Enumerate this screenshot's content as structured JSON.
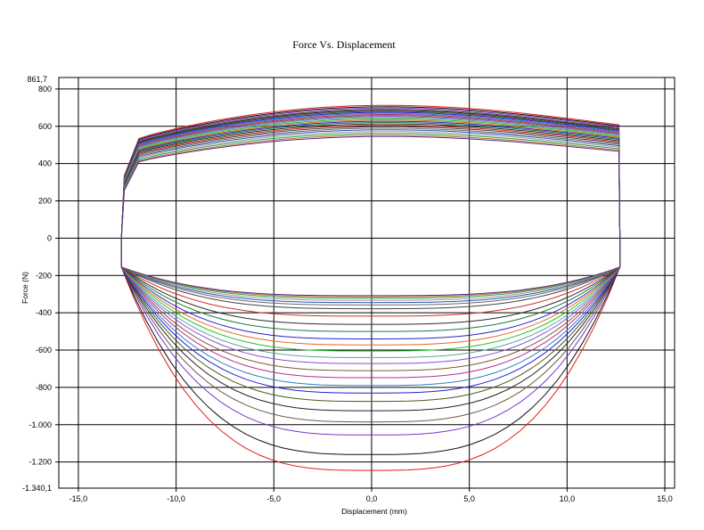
{
  "chart_data": {
    "type": "line",
    "title": "Force Vs. Displacement",
    "xlabel": "Displacement (mm)",
    "ylabel": "Force (N)",
    "xlim": [
      -16.0,
      15.5
    ],
    "ylim": [
      -1340.1,
      861.7
    ],
    "y_extreme_labels": {
      "max": "861,7",
      "min": "-1.340,1"
    },
    "x_ticks": [
      {
        "value": -15,
        "label": "-15,0"
      },
      {
        "value": -10,
        "label": "-10,0"
      },
      {
        "value": -5,
        "label": "-5,0"
      },
      {
        "value": 0,
        "label": "0,0"
      },
      {
        "value": 5,
        "label": "5,0"
      },
      {
        "value": 10,
        "label": "10,0"
      },
      {
        "value": 15,
        "label": "15,0"
      }
    ],
    "y_ticks": [
      {
        "value": 800,
        "label": "800"
      },
      {
        "value": 600,
        "label": "600"
      },
      {
        "value": 400,
        "label": "400"
      },
      {
        "value": 200,
        "label": "200"
      },
      {
        "value": 0,
        "label": "0"
      },
      {
        "value": -200,
        "label": "-200"
      },
      {
        "value": -400,
        "label": "-400"
      },
      {
        "value": -600,
        "label": "-600"
      },
      {
        "value": -800,
        "label": "-800"
      },
      {
        "value": -1000,
        "label": "-1.000"
      },
      {
        "value": -1200,
        "label": "-1.200"
      }
    ],
    "grid": true,
    "legend": "none",
    "displacement_range": [
      -12.8,
      12.7
    ],
    "series": [
      {
        "color": "#e0201b",
        "upper_peak": 760,
        "lower_min": -1245
      },
      {
        "color": "#111111",
        "upper_peak": 752,
        "lower_min": -1160
      },
      {
        "color": "#7a33cc",
        "upper_peak": 745,
        "lower_min": -1055
      },
      {
        "color": "#6b5a47",
        "upper_peak": 738,
        "lower_min": -985
      },
      {
        "color": "#222222",
        "upper_peak": 732,
        "lower_min": -925
      },
      {
        "color": "#4a5a1a",
        "upper_peak": 726,
        "lower_min": -875
      },
      {
        "color": "#1f1fd6",
        "upper_peak": 720,
        "lower_min": -830
      },
      {
        "color": "#2f7ec9",
        "upper_peak": 714,
        "lower_min": -790
      },
      {
        "color": "#b52f8a",
        "upper_peak": 708,
        "lower_min": -748
      },
      {
        "color": "#7e5a36",
        "upper_peak": 702,
        "lower_min": -710
      },
      {
        "color": "#8a4fd8",
        "upper_peak": 696,
        "lower_min": -672
      },
      {
        "color": "#5aa7a0",
        "upper_peak": 690,
        "lower_min": -640
      },
      {
        "color": "#22c22a",
        "upper_peak": 683,
        "lower_min": -605
      },
      {
        "color": "#e86a1c",
        "upper_peak": 676,
        "lower_min": -572
      },
      {
        "color": "#2222cc",
        "upper_peak": 669,
        "lower_min": -540
      },
      {
        "color": "#1c7a3a",
        "upper_peak": 662,
        "lower_min": -500
      },
      {
        "color": "#2c2c2c",
        "upper_peak": 654,
        "lower_min": -462
      },
      {
        "color": "#d42a2a",
        "upper_peak": 646,
        "lower_min": -418
      },
      {
        "color": "#444444",
        "upper_peak": 638,
        "lower_min": -378
      },
      {
        "color": "#6a6a6a",
        "upper_peak": 629,
        "lower_min": -358
      },
      {
        "color": "#3050b0",
        "upper_peak": 620,
        "lower_min": -345
      },
      {
        "color": "#9a9a9a",
        "upper_peak": 610,
        "lower_min": -333
      },
      {
        "color": "#26a04a",
        "upper_peak": 600,
        "lower_min": -322
      },
      {
        "color": "#b86a2a",
        "upper_peak": 590,
        "lower_min": -314
      },
      {
        "color": "#5a2a8a",
        "upper_peak": 582,
        "lower_min": -308
      }
    ]
  }
}
